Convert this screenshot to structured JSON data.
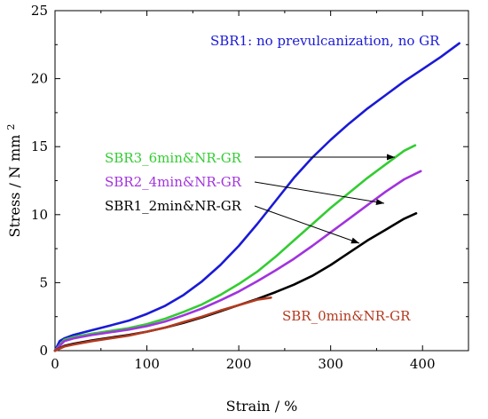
{
  "chart_data": {
    "type": "line",
    "xlabel": "Strain / %",
    "ylabel_main": "Stress / N mm",
    "ylabel_sup": "2",
    "xlim": [
      0,
      450
    ],
    "ylim": [
      0,
      25
    ],
    "xticks": [
      0,
      100,
      200,
      300,
      400
    ],
    "yticks": [
      0,
      5,
      10,
      15,
      20,
      25
    ],
    "grid": false,
    "series": [
      {
        "name": "SBR1: no prevulcanization, no GR",
        "color": "#1a1ad6",
        "x": [
          0,
          5,
          10,
          20,
          40,
          60,
          80,
          100,
          120,
          140,
          160,
          180,
          200,
          220,
          240,
          260,
          280,
          300,
          320,
          340,
          360,
          380,
          400,
          420,
          440
        ],
        "y": [
          0,
          0.7,
          0.9,
          1.15,
          1.5,
          1.85,
          2.2,
          2.7,
          3.3,
          4.1,
          5.1,
          6.3,
          7.7,
          9.3,
          11.0,
          12.7,
          14.2,
          15.5,
          16.7,
          17.8,
          18.8,
          19.8,
          20.7,
          21.6,
          22.6
        ]
      },
      {
        "name": "SBR3_6min&NR-GR",
        "color": "#33cc33",
        "x": [
          0,
          10,
          20,
          40,
          60,
          80,
          100,
          120,
          140,
          160,
          180,
          200,
          220,
          240,
          260,
          280,
          300,
          320,
          340,
          360,
          380,
          392
        ],
        "y": [
          0,
          0.8,
          1.0,
          1.25,
          1.45,
          1.65,
          1.95,
          2.35,
          2.85,
          3.4,
          4.1,
          4.9,
          5.8,
          6.9,
          8.1,
          9.3,
          10.5,
          11.6,
          12.7,
          13.7,
          14.7,
          15.1
        ]
      },
      {
        "name": "SBR2_4min&NR-GR",
        "color": "#a133dd",
        "x": [
          0,
          10,
          20,
          40,
          60,
          80,
          100,
          120,
          140,
          160,
          180,
          200,
          220,
          240,
          260,
          280,
          300,
          320,
          340,
          360,
          380,
          398
        ],
        "y": [
          0,
          0.7,
          0.9,
          1.15,
          1.35,
          1.55,
          1.8,
          2.15,
          2.6,
          3.1,
          3.7,
          4.35,
          5.1,
          5.9,
          6.75,
          7.7,
          8.7,
          9.7,
          10.7,
          11.7,
          12.6,
          13.2
        ]
      },
      {
        "name": "SBR1_2min&NR-GR",
        "color": "#000000",
        "x": [
          0,
          10,
          20,
          40,
          60,
          80,
          100,
          120,
          140,
          160,
          180,
          200,
          220,
          240,
          260,
          280,
          300,
          320,
          340,
          360,
          380,
          393
        ],
        "y": [
          0,
          0.35,
          0.5,
          0.75,
          0.95,
          1.15,
          1.4,
          1.7,
          2.05,
          2.45,
          2.9,
          3.35,
          3.8,
          4.3,
          4.85,
          5.5,
          6.3,
          7.2,
          8.1,
          8.9,
          9.7,
          10.1
        ]
      },
      {
        "name": "SBR_0min&NR-GR",
        "color": "#b33a1f",
        "x": [
          0,
          10,
          20,
          40,
          60,
          80,
          100,
          120,
          140,
          160,
          180,
          200,
          220,
          235
        ],
        "y": [
          0,
          0.3,
          0.45,
          0.7,
          0.9,
          1.1,
          1.4,
          1.7,
          2.1,
          2.5,
          2.95,
          3.35,
          3.75,
          3.9
        ]
      }
    ],
    "labels": [
      {
        "series": 0,
        "text": "SBR1: no prevulcanization, no GR"
      },
      {
        "series": 1,
        "text": "SBR3_6min&NR-GR"
      },
      {
        "series": 2,
        "text": "SBR2_4min&NR-GR"
      },
      {
        "series": 3,
        "text": "SBR1_2min&NR-GR"
      },
      {
        "series": 4,
        "text": "SBR_0min&NR-GR"
      }
    ]
  }
}
